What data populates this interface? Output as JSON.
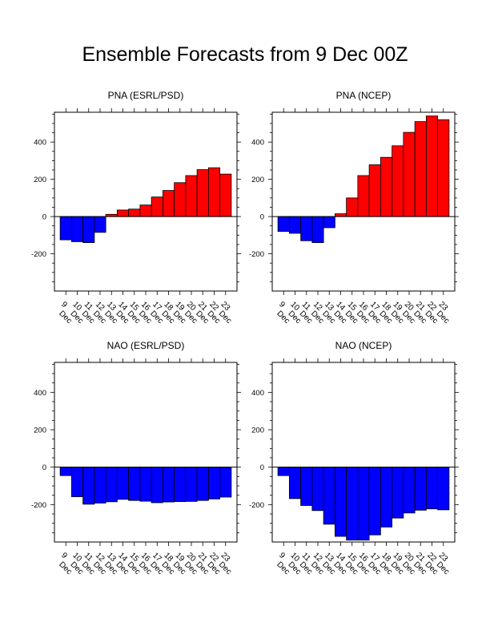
{
  "figure": {
    "title": "Ensemble Forecasts from 9 Dec 00Z"
  },
  "colors": {
    "positive": "#ff0000",
    "negative": "#0000ff",
    "zero_line": "#000000"
  },
  "chart_data": [
    {
      "type": "bar",
      "title": "PNA (ESRL/PSD)",
      "categories": [
        "9 Dec",
        "10 Dec",
        "11 Dec",
        "12 Dec",
        "13 Dec",
        "14 Dec",
        "15 Dec",
        "16 Dec",
        "17 Dec",
        "18 Dec",
        "19 Dec",
        "20 Dec",
        "21 Dec",
        "22 Dec",
        "23 Dec"
      ],
      "values": [
        -125,
        -135,
        -140,
        -85,
        12,
        35,
        40,
        62,
        105,
        140,
        182,
        220,
        252,
        262,
        228
      ],
      "ylim": [
        -400,
        560
      ],
      "yticks": [
        -200,
        0,
        200,
        400
      ],
      "grid": false
    },
    {
      "type": "bar",
      "title": "PNA (NCEP)",
      "categories": [
        "9 Dec",
        "10 Dec",
        "11 Dec",
        "12 Dec",
        "13 Dec",
        "14 Dec",
        "15 Dec",
        "16 Dec",
        "17 Dec",
        "18 Dec",
        "19 Dec",
        "20 Dec",
        "21 Dec",
        "22 Dec",
        "23 Dec"
      ],
      "values": [
        -80,
        -90,
        -130,
        -140,
        -60,
        15,
        100,
        220,
        278,
        318,
        380,
        452,
        510,
        540,
        520
      ],
      "ylim": [
        -400,
        560
      ],
      "yticks": [
        -200,
        0,
        200,
        400
      ],
      "grid": false
    },
    {
      "type": "bar",
      "title": "NAO (ESRL/PSD)",
      "categories": [
        "9 Dec",
        "10 Dec",
        "11 Dec",
        "12 Dec",
        "13 Dec",
        "14 Dec",
        "15 Dec",
        "16 Dec",
        "17 Dec",
        "18 Dec",
        "19 Dec",
        "20 Dec",
        "21 Dec",
        "22 Dec",
        "23 Dec"
      ],
      "values": [
        -45,
        -158,
        -198,
        -192,
        -185,
        -172,
        -178,
        -182,
        -190,
        -186,
        -184,
        -183,
        -178,
        -170,
        -160
      ],
      "ylim": [
        -400,
        560
      ],
      "yticks": [
        -200,
        0,
        200,
        400
      ],
      "grid": false
    },
    {
      "type": "bar",
      "title": "NAO (NCEP)",
      "categories": [
        "9 Dec",
        "10 Dec",
        "11 Dec",
        "12 Dec",
        "13 Dec",
        "14 Dec",
        "15 Dec",
        "16 Dec",
        "17 Dec",
        "18 Dec",
        "19 Dec",
        "20 Dec",
        "21 Dec",
        "22 Dec",
        "23 Dec"
      ],
      "values": [
        -45,
        -168,
        -205,
        -232,
        -305,
        -370,
        -390,
        -390,
        -362,
        -320,
        -272,
        -245,
        -230,
        -223,
        -228
      ],
      "ylim": [
        -400,
        560
      ],
      "yticks": [
        -200,
        0,
        200,
        400
      ],
      "grid": false
    }
  ]
}
